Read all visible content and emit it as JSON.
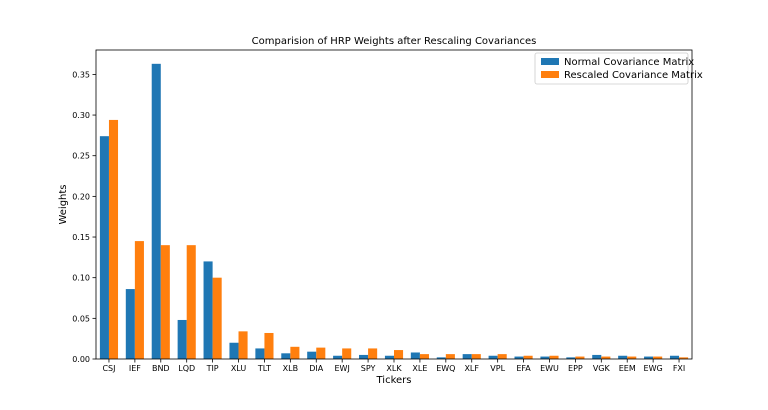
{
  "chart_data": {
    "type": "bar",
    "title": "Comparision of HRP Weights after Rescaling Covariances",
    "xlabel": "Tickers",
    "ylabel": "Weights",
    "ylim": [
      0,
      0.38
    ],
    "yticks": [
      0.0,
      0.05,
      0.1,
      0.15,
      0.2,
      0.25,
      0.3,
      0.35
    ],
    "ytick_labels": [
      "0.00",
      "0.05",
      "0.10",
      "0.15",
      "0.20",
      "0.25",
      "0.30",
      "0.35"
    ],
    "grid": false,
    "legend_position": "top-right",
    "categories": [
      "CSJ",
      "IEF",
      "BND",
      "LQD",
      "TIP",
      "XLU",
      "TLT",
      "XLB",
      "DIA",
      "EWJ",
      "SPY",
      "XLK",
      "XLE",
      "EWQ",
      "XLF",
      "VPL",
      "EFA",
      "EWU",
      "EPP",
      "VGK",
      "EEM",
      "EWG",
      "FXI"
    ],
    "series": [
      {
        "name": "Normal Covariance Matrix",
        "color": "#1f77b4",
        "values": [
          0.274,
          0.086,
          0.363,
          0.048,
          0.12,
          0.02,
          0.013,
          0.007,
          0.009,
          0.004,
          0.005,
          0.004,
          0.008,
          0.002,
          0.006,
          0.004,
          0.003,
          0.003,
          0.002,
          0.005,
          0.004,
          0.003,
          0.004
        ]
      },
      {
        "name": "Rescaled Covariance Matrix",
        "color": "#ff7f0e",
        "values": [
          0.294,
          0.145,
          0.14,
          0.14,
          0.1,
          0.034,
          0.032,
          0.015,
          0.014,
          0.013,
          0.013,
          0.011,
          0.006,
          0.006,
          0.006,
          0.006,
          0.004,
          0.004,
          0.003,
          0.003,
          0.003,
          0.003,
          0.002
        ]
      }
    ]
  }
}
